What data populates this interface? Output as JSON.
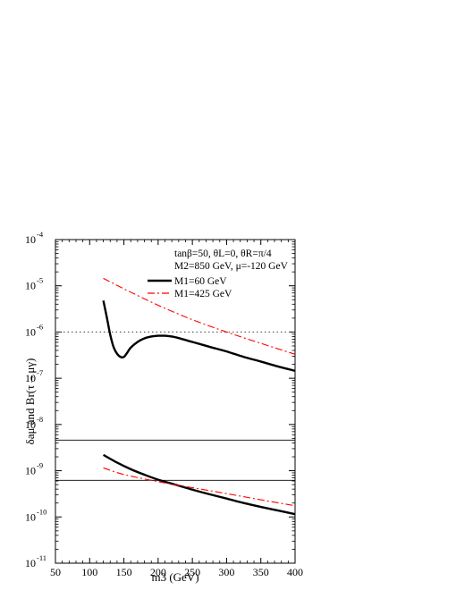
{
  "chart_data": {
    "type": "line",
    "xlabel": "m3 (GeV)",
    "ylabel": "δaμ and Br(τ→μγ)",
    "xlim": [
      50,
      400
    ],
    "ylim_log10": [
      -11,
      -4
    ],
    "x_scale": "linear",
    "y_scale": "log",
    "x_ticks": [
      50,
      100,
      150,
      200,
      250,
      300,
      350,
      400
    ],
    "y_ticks": [
      -11,
      -10,
      -9,
      -8,
      -7,
      -6,
      -5,
      -4
    ],
    "annotation_lines": [
      "tanβ=50, θL=0, θR=π/4",
      "M2=850 GeV, μ=-120 GeV"
    ],
    "legend_placement": "top-right",
    "reference_lines": [
      {
        "style": "dotted",
        "y": 1e-06
      },
      {
        "style": "solid-thin",
        "y": 4.6e-09
      },
      {
        "style": "solid-thin",
        "y": 6.2e-10
      }
    ],
    "series": [
      {
        "name": "M1=60 GeV",
        "style": "solid",
        "color": "#000000",
        "curves": [
          {
            "x": [
              120,
              125,
              130,
              135,
              140,
              145,
              150,
              155,
              160,
              170,
              180,
              190,
              200,
              210,
              220,
              230,
              250,
              275,
              300,
              325,
              350,
              375,
              400
            ],
            "y": [
              4.8e-06,
              2.1e-06,
              8.8e-07,
              4.7e-07,
              3.4e-07,
              2.9e-07,
              2.9e-07,
              3.6e-07,
              4.6e-07,
              6.1e-07,
              7.3e-07,
              8e-07,
              8.3e-07,
              8.3e-07,
              8e-07,
              7.4e-07,
              6.1e-07,
              4.8e-07,
              3.8e-07,
              2.9e-07,
              2.3e-07,
              1.8e-07,
              1.45e-07
            ]
          },
          {
            "x": [
              120,
              140,
              160,
              180,
              200,
              225,
              250,
              275,
              300,
              325,
              350,
              375,
              400
            ],
            "y": [
              2.2e-09,
              1.5e-09,
              1.08e-09,
              8.2e-10,
              6.4e-10,
              5e-10,
              3.9e-10,
              3.1e-10,
              2.5e-10,
              2e-10,
              1.65e-10,
              1.38e-10,
              1.15e-10
            ]
          }
        ]
      },
      {
        "name": "M1=425 GeV",
        "style": "dash-dot",
        "color": "#ff0000",
        "curves": [
          {
            "x": [
              120,
              150,
              200,
              250,
              300,
              350,
              400
            ],
            "y": [
              1.45e-05,
              8.6e-06,
              3.8e-06,
              1.85e-06,
              1e-06,
              5.7e-07,
              3.3e-07
            ]
          },
          {
            "x": [
              120,
              150,
              200,
              250,
              300,
              350,
              400
            ],
            "y": [
              1.15e-09,
              8.3e-10,
              5.8e-10,
              4.3e-10,
              3.2e-10,
              2.35e-10,
              1.75e-10
            ]
          }
        ]
      }
    ]
  }
}
